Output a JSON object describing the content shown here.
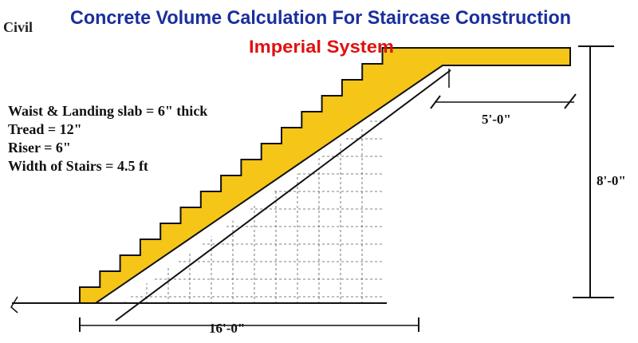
{
  "header": {
    "title": "Concrete Volume Calculation For Staircase Construction",
    "subtitle": "Imperial System",
    "logo": "Civil"
  },
  "specs": [
    "Waist & Landing  slab = 6\" thick",
    "Tread = 12\"",
    "Riser  = 6\"",
    "Width of Stairs = 4.5 ft"
  ],
  "dimensions": {
    "landing_length": "5'-0\"",
    "height": "8'-0\"",
    "run_length": "16'-0\""
  }
}
